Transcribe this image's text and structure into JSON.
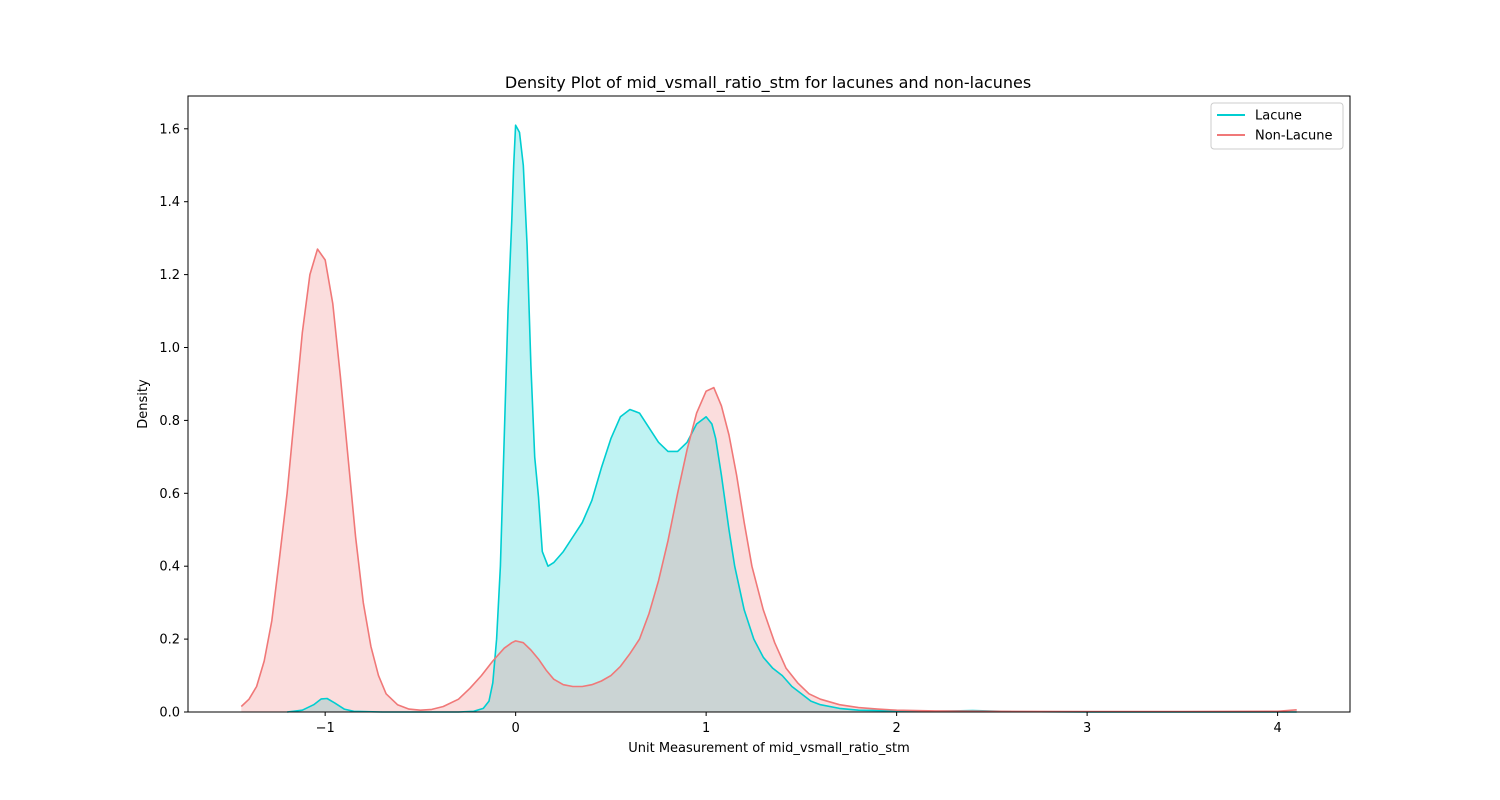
{
  "chart_data": {
    "type": "area",
    "title": "Density Plot of mid_vsmall_ratio_stm for lacunes and non-lacunes",
    "xlabel": "Unit Measurement of mid_vsmall_ratio_stm",
    "ylabel": "Density",
    "xlim": [
      -1.72,
      4.38
    ],
    "ylim": [
      0,
      1.69
    ],
    "xticks": [
      -1,
      0,
      1,
      2,
      3,
      4
    ],
    "xtick_labels": [
      "−1",
      "0",
      "1",
      "2",
      "3",
      "4"
    ],
    "yticks": [
      0.0,
      0.2,
      0.4,
      0.6,
      0.8,
      1.0,
      1.2,
      1.4,
      1.6
    ],
    "ytick_labels": [
      "0.0",
      "0.2",
      "0.4",
      "0.6",
      "0.8",
      "1.0",
      "1.2",
      "1.4",
      "1.6"
    ],
    "grid": false,
    "legend": "top-right",
    "series": [
      {
        "name": "Lacune",
        "color": "#00ced1",
        "fill": "#bdf2f2",
        "points": [
          [
            -1.2,
            0.0
          ],
          [
            -1.12,
            0.005
          ],
          [
            -1.06,
            0.02
          ],
          [
            -1.02,
            0.036
          ],
          [
            -0.99,
            0.037
          ],
          [
            -0.95,
            0.025
          ],
          [
            -0.9,
            0.008
          ],
          [
            -0.85,
            0.002
          ],
          [
            -0.7,
            0.0
          ],
          [
            -0.3,
            0.0
          ],
          [
            -0.22,
            0.002
          ],
          [
            -0.17,
            0.01
          ],
          [
            -0.14,
            0.03
          ],
          [
            -0.12,
            0.08
          ],
          [
            -0.1,
            0.2
          ],
          [
            -0.08,
            0.4
          ],
          [
            -0.06,
            0.75
          ],
          [
            -0.04,
            1.1
          ],
          [
            -0.02,
            1.35
          ],
          [
            -0.01,
            1.5
          ],
          [
            0.0,
            1.61
          ],
          [
            0.02,
            1.59
          ],
          [
            0.04,
            1.5
          ],
          [
            0.06,
            1.28
          ],
          [
            0.08,
            0.95
          ],
          [
            0.1,
            0.7
          ],
          [
            0.12,
            0.59
          ],
          [
            0.14,
            0.44
          ],
          [
            0.17,
            0.4
          ],
          [
            0.2,
            0.41
          ],
          [
            0.25,
            0.44
          ],
          [
            0.3,
            0.48
          ],
          [
            0.35,
            0.52
          ],
          [
            0.4,
            0.58
          ],
          [
            0.45,
            0.67
          ],
          [
            0.5,
            0.75
          ],
          [
            0.55,
            0.81
          ],
          [
            0.6,
            0.83
          ],
          [
            0.65,
            0.82
          ],
          [
            0.7,
            0.78
          ],
          [
            0.75,
            0.74
          ],
          [
            0.8,
            0.715
          ],
          [
            0.85,
            0.715
          ],
          [
            0.9,
            0.74
          ],
          [
            0.95,
            0.79
          ],
          [
            1.0,
            0.81
          ],
          [
            1.03,
            0.79
          ],
          [
            1.05,
            0.75
          ],
          [
            1.08,
            0.65
          ],
          [
            1.12,
            0.5
          ],
          [
            1.15,
            0.4
          ],
          [
            1.2,
            0.28
          ],
          [
            1.25,
            0.2
          ],
          [
            1.3,
            0.15
          ],
          [
            1.35,
            0.12
          ],
          [
            1.4,
            0.1
          ],
          [
            1.45,
            0.07
          ],
          [
            1.5,
            0.05
          ],
          [
            1.55,
            0.03
          ],
          [
            1.6,
            0.02
          ],
          [
            1.7,
            0.01
          ],
          [
            1.8,
            0.005
          ],
          [
            2.0,
            0.003
          ],
          [
            2.2,
            0.002
          ],
          [
            2.4,
            0.004
          ],
          [
            2.6,
            0.001
          ],
          [
            3.0,
            0.0
          ],
          [
            3.5,
            0.0
          ],
          [
            4.1,
            0.0
          ]
        ]
      },
      {
        "name": "Non-Lacune",
        "color": "#f07878",
        "fill": "#f9dddd",
        "points": [
          [
            -1.44,
            0.015
          ],
          [
            -1.4,
            0.035
          ],
          [
            -1.36,
            0.07
          ],
          [
            -1.32,
            0.14
          ],
          [
            -1.28,
            0.25
          ],
          [
            -1.24,
            0.42
          ],
          [
            -1.2,
            0.6
          ],
          [
            -1.16,
            0.82
          ],
          [
            -1.12,
            1.04
          ],
          [
            -1.08,
            1.2
          ],
          [
            -1.04,
            1.27
          ],
          [
            -1.0,
            1.24
          ],
          [
            -0.96,
            1.12
          ],
          [
            -0.92,
            0.92
          ],
          [
            -0.88,
            0.7
          ],
          [
            -0.84,
            0.48
          ],
          [
            -0.8,
            0.3
          ],
          [
            -0.76,
            0.18
          ],
          [
            -0.72,
            0.1
          ],
          [
            -0.68,
            0.05
          ],
          [
            -0.62,
            0.02
          ],
          [
            -0.56,
            0.008
          ],
          [
            -0.5,
            0.005
          ],
          [
            -0.44,
            0.007
          ],
          [
            -0.38,
            0.015
          ],
          [
            -0.3,
            0.035
          ],
          [
            -0.24,
            0.065
          ],
          [
            -0.18,
            0.1
          ],
          [
            -0.12,
            0.14
          ],
          [
            -0.06,
            0.175
          ],
          [
            -0.02,
            0.19
          ],
          [
            0.0,
            0.195
          ],
          [
            0.04,
            0.19
          ],
          [
            0.08,
            0.17
          ],
          [
            0.12,
            0.145
          ],
          [
            0.16,
            0.115
          ],
          [
            0.2,
            0.09
          ],
          [
            0.25,
            0.075
          ],
          [
            0.3,
            0.07
          ],
          [
            0.35,
            0.07
          ],
          [
            0.4,
            0.075
          ],
          [
            0.45,
            0.085
          ],
          [
            0.5,
            0.1
          ],
          [
            0.55,
            0.125
          ],
          [
            0.6,
            0.16
          ],
          [
            0.65,
            0.2
          ],
          [
            0.7,
            0.27
          ],
          [
            0.75,
            0.36
          ],
          [
            0.8,
            0.47
          ],
          [
            0.85,
            0.6
          ],
          [
            0.9,
            0.72
          ],
          [
            0.95,
            0.82
          ],
          [
            1.0,
            0.88
          ],
          [
            1.04,
            0.89
          ],
          [
            1.08,
            0.84
          ],
          [
            1.12,
            0.76
          ],
          [
            1.16,
            0.65
          ],
          [
            1.2,
            0.52
          ],
          [
            1.24,
            0.4
          ],
          [
            1.3,
            0.28
          ],
          [
            1.36,
            0.19
          ],
          [
            1.42,
            0.12
          ],
          [
            1.48,
            0.08
          ],
          [
            1.54,
            0.05
          ],
          [
            1.6,
            0.035
          ],
          [
            1.7,
            0.02
          ],
          [
            1.8,
            0.012
          ],
          [
            1.9,
            0.008
          ],
          [
            2.0,
            0.005
          ],
          [
            2.2,
            0.003
          ],
          [
            2.5,
            0.002
          ],
          [
            3.0,
            0.001
          ],
          [
            3.5,
            0.001
          ],
          [
            4.0,
            0.002
          ],
          [
            4.1,
            0.006
          ]
        ]
      }
    ]
  }
}
